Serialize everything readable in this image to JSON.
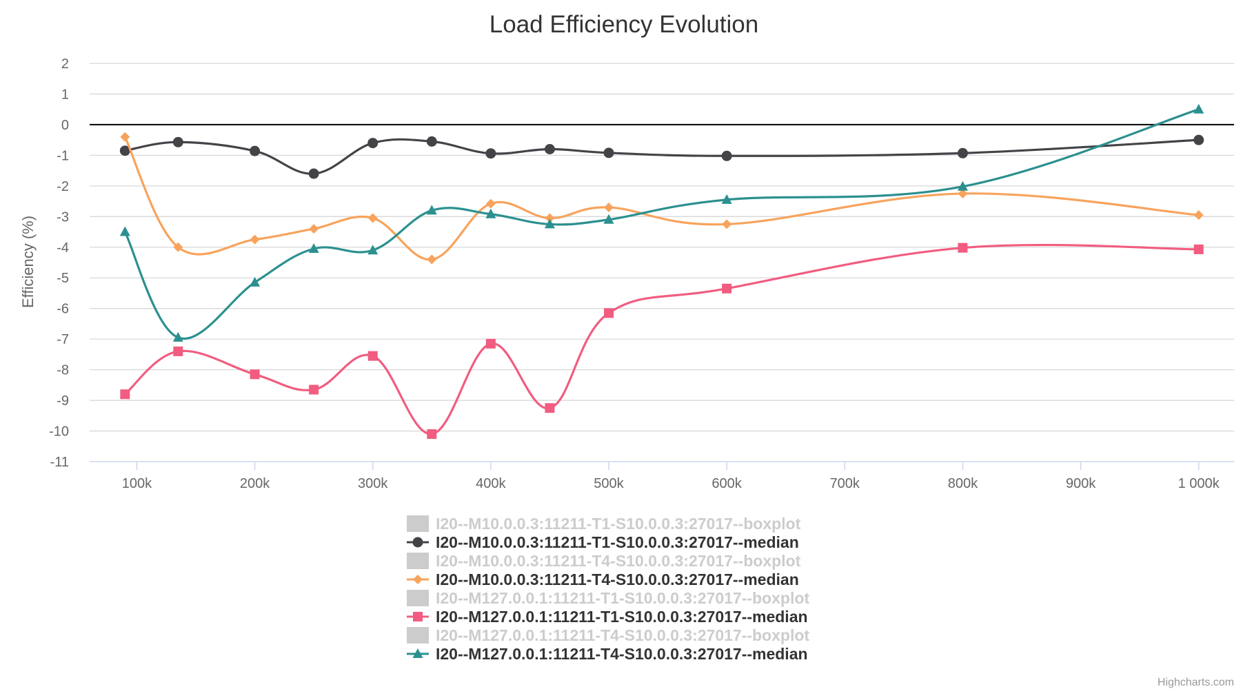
{
  "chart_data": {
    "type": "line",
    "title": "Load Efficiency Evolution",
    "ylabel": "Efficiency (%)",
    "xlabel": "",
    "ylim": [
      -11,
      2
    ],
    "xlim": [
      60000,
      1030000
    ],
    "y_ticks": [
      2,
      1,
      0,
      -1,
      -2,
      -3,
      -4,
      -5,
      -6,
      -7,
      -8,
      -9,
      -10,
      -11
    ],
    "x_ticks": [
      {
        "value": 100000,
        "label": "100k"
      },
      {
        "value": 200000,
        "label": "200k"
      },
      {
        "value": 300000,
        "label": "300k"
      },
      {
        "value": 400000,
        "label": "400k"
      },
      {
        "value": 500000,
        "label": "500k"
      },
      {
        "value": 600000,
        "label": "600k"
      },
      {
        "value": 700000,
        "label": "700k"
      },
      {
        "value": 800000,
        "label": "800k"
      },
      {
        "value": 900000,
        "label": "900k"
      },
      {
        "value": 1000000,
        "label": "1 000k"
      }
    ],
    "x": [
      90000,
      135000,
      200000,
      250000,
      300000,
      350000,
      400000,
      450000,
      500000,
      600000,
      800000,
      1000000
    ],
    "grid": true,
    "legend_position": "bottom-center",
    "series": [
      {
        "name": "I20--M10.0.0.3:11211-T1-S10.0.0.3:27017--boxplot",
        "type": "boxplot",
        "hidden": true,
        "color": "#cccccc"
      },
      {
        "name": "I20--M10.0.0.3:11211-T1-S10.0.0.3:27017--median",
        "color": "#434348",
        "marker": "circle",
        "values": [
          -0.85,
          -0.57,
          -0.86,
          -1.6,
          -0.6,
          -0.55,
          -0.94,
          -0.8,
          -0.92,
          -1.02,
          -0.93,
          -0.5
        ]
      },
      {
        "name": "I20--M10.0.0.3:11211-T4-S10.0.0.3:27017--boxplot",
        "type": "boxplot",
        "hidden": true,
        "color": "#cccccc"
      },
      {
        "name": "I20--M10.0.0.3:11211-T4-S10.0.0.3:27017--median",
        "color": "#f7a35c",
        "marker": "diamond",
        "values": [
          -0.4,
          -4.0,
          -3.75,
          -3.4,
          -3.05,
          -4.4,
          -2.58,
          -3.05,
          -2.7,
          -3.25,
          -2.25,
          -2.95
        ]
      },
      {
        "name": "I20--M127.0.0.1:11211-T1-S10.0.0.3:27017--boxplot",
        "type": "boxplot",
        "hidden": true,
        "color": "#cccccc"
      },
      {
        "name": "I20--M127.0.0.1:11211-T1-S10.0.0.3:27017--median",
        "color": "#f15c80",
        "marker": "square",
        "values": [
          -8.8,
          -7.4,
          -8.15,
          -8.65,
          -7.55,
          -10.1,
          -7.15,
          -9.25,
          -6.15,
          -5.35,
          -4.02,
          -4.07
        ]
      },
      {
        "name": "I20--M127.0.0.1:11211-T4-S10.0.0.3:27017--boxplot",
        "type": "boxplot",
        "hidden": true,
        "color": "#cccccc"
      },
      {
        "name": "I20--M127.0.0.1:11211-T4-S10.0.0.3:27017--median",
        "color": "#2b908f",
        "marker": "triangle",
        "values": [
          -3.5,
          -6.95,
          -5.15,
          -4.05,
          -4.1,
          -2.8,
          -2.92,
          -3.25,
          -3.1,
          -2.45,
          -2.02,
          0.5
        ]
      }
    ]
  },
  "credits": "Highcharts.com"
}
